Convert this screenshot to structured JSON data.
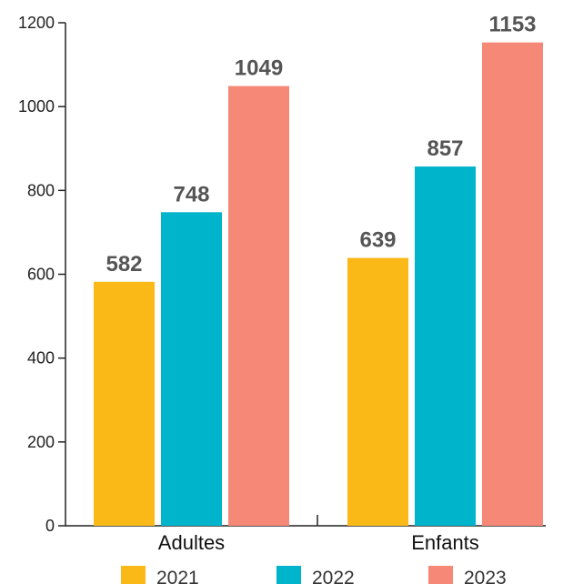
{
  "chart_data": {
    "type": "bar",
    "categories": [
      "Adultes",
      "Enfants"
    ],
    "series": [
      {
        "name": "2021",
        "color": "#FBB917",
        "values": [
          582,
          639
        ]
      },
      {
        "name": "2022",
        "color": "#00B4CC",
        "values": [
          748,
          857
        ]
      },
      {
        "name": "2023",
        "color": "#F68877",
        "values": [
          1049,
          1153
        ]
      }
    ],
    "title": "",
    "xlabel": "",
    "ylabel": "",
    "ylim": [
      0,
      1200
    ],
    "yticks": [
      0,
      200,
      400,
      600,
      800,
      1000,
      1200
    ],
    "data_labels": true,
    "legend_position": "bottom",
    "grid": false
  }
}
